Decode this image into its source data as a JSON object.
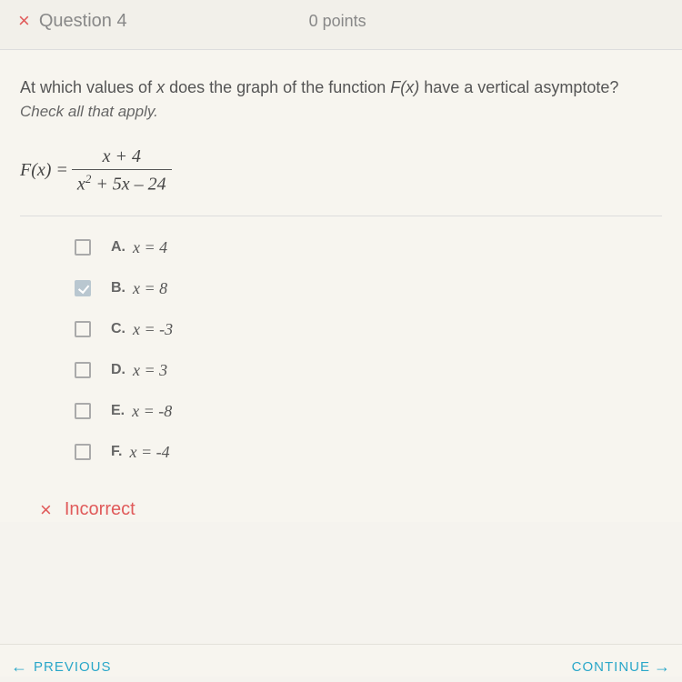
{
  "header": {
    "icon": "×",
    "question_label": "Question 4",
    "points_label": "0 points"
  },
  "prompt": {
    "line1_a": "At which values of ",
    "line1_var": "x",
    "line1_b": " does the graph of the function ",
    "line1_fn": "F(x)",
    "line1_c": " have a vertical asymptote?",
    "line2": "Check all that apply."
  },
  "formula": {
    "lhs": "F(x) = ",
    "numerator": "x + 4",
    "denominator_a": "x",
    "denominator_sup": "2",
    "denominator_b": " + 5x – 24"
  },
  "choices": [
    {
      "letter": "A.",
      "text": "x = 4",
      "checked": false
    },
    {
      "letter": "B.",
      "text": "x = 8",
      "checked": true
    },
    {
      "letter": "C.",
      "text": "x = -3",
      "checked": false
    },
    {
      "letter": "D.",
      "text": "x = 3",
      "checked": false
    },
    {
      "letter": "E.",
      "text": "x = -8",
      "checked": false
    },
    {
      "letter": "F.",
      "text": "x = -4",
      "checked": false
    }
  ],
  "feedback": {
    "icon": "×",
    "text": "Incorrect"
  },
  "footer": {
    "prev": "PREVIOUS",
    "cont": "CONTINUE"
  },
  "colors": {
    "red": "#e05a5a",
    "teal": "#2aa7c9",
    "bg": "#f7f5ef",
    "check_fill": "#b9c7d0"
  }
}
